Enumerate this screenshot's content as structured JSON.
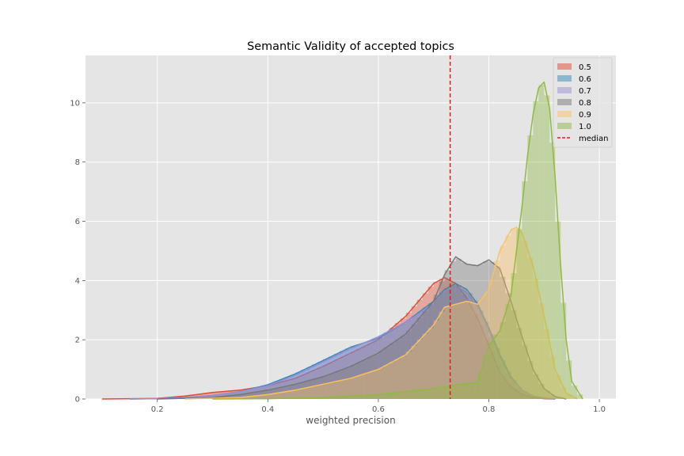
{
  "chart_data": {
    "type": "area",
    "title": "Semantic Validity of accepted topics",
    "xlabel": "weighted precision",
    "ylabel": "",
    "xlim": [
      0.07,
      1.03
    ],
    "ylim": [
      0,
      11.6
    ],
    "x_ticks": [
      0.2,
      0.4,
      0.6,
      0.8,
      1.0
    ],
    "x_tick_labels": [
      "0.2",
      "0.4",
      "0.6",
      "0.8",
      "1.0"
    ],
    "y_ticks": [
      0,
      2,
      4,
      6,
      8,
      10
    ],
    "y_tick_labels": [
      "0",
      "2",
      "4",
      "6",
      "8",
      "10"
    ],
    "grid": true,
    "legend_position": "top-right",
    "median": {
      "label": "median",
      "x": 0.73,
      "color": "#e41a1c"
    },
    "series": [
      {
        "name": "0.5",
        "color": "#E24A33",
        "x": [
          0.1,
          0.2,
          0.25,
          0.3,
          0.35,
          0.4,
          0.45,
          0.5,
          0.55,
          0.6,
          0.65,
          0.7,
          0.72,
          0.74,
          0.76,
          0.78,
          0.8,
          0.82,
          0.84,
          0.86,
          0.88,
          0.9,
          0.92
        ],
        "y": [
          0.0,
          0.02,
          0.1,
          0.22,
          0.3,
          0.45,
          0.7,
          1.1,
          1.55,
          2.0,
          2.8,
          3.9,
          4.1,
          3.9,
          3.4,
          2.7,
          1.8,
          0.9,
          0.4,
          0.15,
          0.05,
          0.01,
          0.0
        ]
      },
      {
        "name": "0.6",
        "color": "#348ABD",
        "x": [
          0.15,
          0.2,
          0.25,
          0.3,
          0.35,
          0.4,
          0.45,
          0.5,
          0.55,
          0.6,
          0.65,
          0.7,
          0.72,
          0.74,
          0.76,
          0.78,
          0.8,
          0.82,
          0.84,
          0.86,
          0.88,
          0.9,
          0.92
        ],
        "y": [
          0.0,
          0.01,
          0.05,
          0.12,
          0.25,
          0.48,
          0.85,
          1.3,
          1.75,
          2.05,
          2.6,
          3.3,
          3.7,
          3.9,
          3.7,
          3.2,
          2.4,
          1.5,
          0.75,
          0.3,
          0.1,
          0.03,
          0.0
        ]
      },
      {
        "name": "0.7",
        "color": "#988ED5",
        "x": [
          0.15,
          0.2,
          0.25,
          0.3,
          0.35,
          0.4,
          0.45,
          0.5,
          0.55,
          0.6,
          0.65,
          0.7,
          0.72,
          0.74,
          0.76,
          0.78,
          0.8,
          0.82,
          0.84,
          0.86,
          0.88,
          0.9,
          0.92
        ],
        "y": [
          0.0,
          0.01,
          0.05,
          0.12,
          0.25,
          0.45,
          0.8,
          1.25,
          1.7,
          2.1,
          2.6,
          3.2,
          3.6,
          3.8,
          3.6,
          3.1,
          2.3,
          1.4,
          0.7,
          0.3,
          0.1,
          0.03,
          0.0
        ]
      },
      {
        "name": "0.8",
        "color": "#777777",
        "x": [
          0.2,
          0.3,
          0.35,
          0.4,
          0.45,
          0.5,
          0.55,
          0.6,
          0.65,
          0.7,
          0.72,
          0.74,
          0.76,
          0.78,
          0.8,
          0.82,
          0.84,
          0.86,
          0.88,
          0.9,
          0.92,
          0.94
        ],
        "y": [
          0.0,
          0.05,
          0.15,
          0.3,
          0.5,
          0.75,
          1.1,
          1.55,
          2.2,
          3.3,
          4.2,
          4.8,
          4.55,
          4.5,
          4.7,
          4.4,
          3.3,
          2.1,
          1.0,
          0.35,
          0.08,
          0.0
        ]
      },
      {
        "name": "0.9",
        "color": "#FBC15E",
        "x": [
          0.25,
          0.35,
          0.4,
          0.45,
          0.5,
          0.55,
          0.6,
          0.65,
          0.7,
          0.72,
          0.74,
          0.76,
          0.78,
          0.8,
          0.82,
          0.84,
          0.85,
          0.86,
          0.88,
          0.9,
          0.92,
          0.94,
          0.96
        ],
        "y": [
          0.0,
          0.05,
          0.15,
          0.3,
          0.5,
          0.7,
          1.0,
          1.5,
          2.5,
          3.1,
          3.2,
          3.3,
          3.2,
          3.7,
          5.0,
          5.7,
          5.8,
          5.6,
          4.5,
          2.8,
          1.0,
          0.2,
          0.0
        ]
      },
      {
        "name": "1.0",
        "color": "#8EBA42",
        "x": [
          0.3,
          0.4,
          0.5,
          0.6,
          0.7,
          0.75,
          0.78,
          0.8,
          0.82,
          0.84,
          0.86,
          0.87,
          0.88,
          0.89,
          0.9,
          0.91,
          0.92,
          0.93,
          0.94,
          0.95,
          0.97
        ],
        "y": [
          0.0,
          0.01,
          0.05,
          0.15,
          0.35,
          0.5,
          0.55,
          1.8,
          2.3,
          3.5,
          6.5,
          8.2,
          9.6,
          10.5,
          10.7,
          9.8,
          7.5,
          4.5,
          2.0,
          0.6,
          0.0
        ]
      }
    ]
  }
}
